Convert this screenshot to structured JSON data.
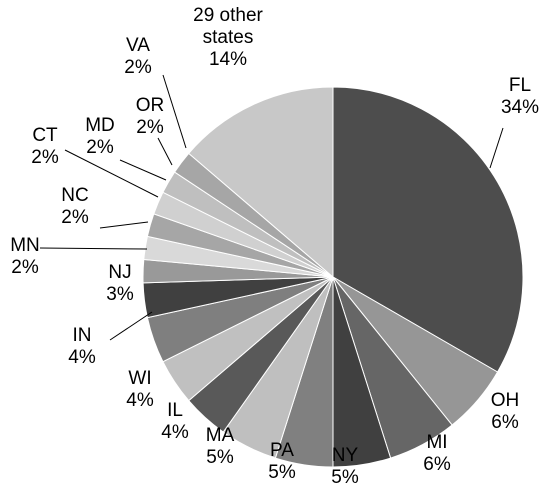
{
  "chart_data": {
    "type": "pie",
    "categories": [
      "FL",
      "OH",
      "MI",
      "NY",
      "PA",
      "MA",
      "IL",
      "WI",
      "IN",
      "NJ",
      "MN",
      "NC",
      "CT",
      "MD",
      "OR",
      "VA",
      "29 other states"
    ],
    "values": [
      34,
      6,
      6,
      5,
      5,
      5,
      4,
      4,
      4,
      3,
      2,
      2,
      2,
      2,
      2,
      2,
      14
    ],
    "value_labels": [
      "34%",
      "6%",
      "6%",
      "5%",
      "5%",
      "5%",
      "4%",
      "4%",
      "4%",
      "3%",
      "2%",
      "2%",
      "2%",
      "2%",
      "2%",
      "2%",
      "14%"
    ],
    "colors": [
      "#4d4d4d",
      "#969696",
      "#666666",
      "#404040",
      "#808080",
      "#bfbfbf",
      "#595959",
      "#c0c0c0",
      "#7f7f7f",
      "#404040",
      "#999999",
      "#d9d9d9",
      "#a6a6a6",
      "#d0d0d0",
      "#bfbfbf",
      "#a6a6a6",
      "#c8c8c8"
    ]
  }
}
